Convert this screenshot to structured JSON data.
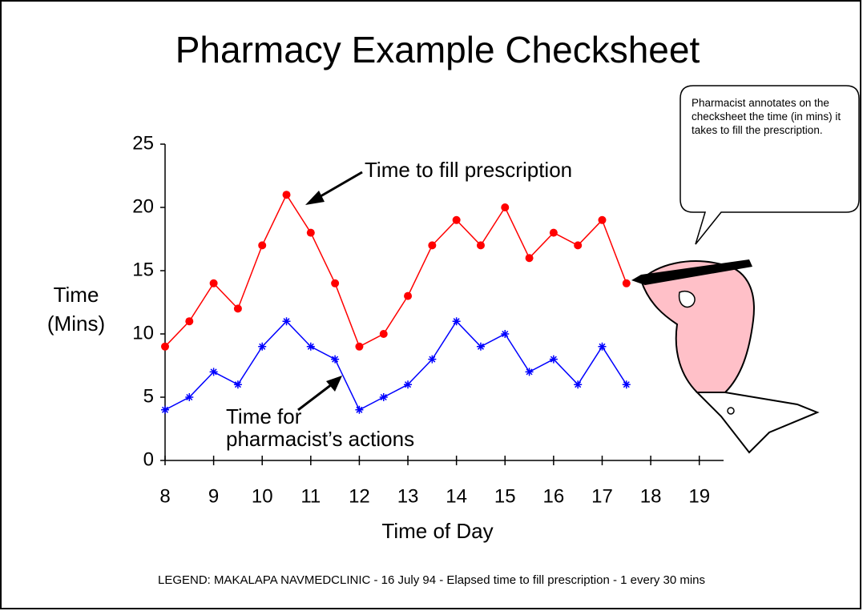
{
  "chart_data": {
    "type": "line",
    "title": "Pharmacy Example Checksheet",
    "x_label": "Time of Day",
    "y_label": "Time\n(Mins)",
    "x": [
      8,
      8.5,
      9,
      9.5,
      10,
      10.5,
      11,
      11.5,
      12,
      12.5,
      13,
      13.5,
      14,
      14.5,
      15,
      15.5,
      16,
      16.5,
      17,
      17.5
    ],
    "series": [
      {
        "name": "Time to fill prescription",
        "color": "#ff0000",
        "marker": "circle",
        "values": [
          9,
          11,
          14,
          12,
          17,
          21,
          18,
          14,
          9,
          10,
          13,
          17,
          19,
          17,
          20,
          16,
          18,
          17,
          19,
          14
        ]
      },
      {
        "name": "Time for\npharmacist’s actions",
        "color": "#0000ff",
        "marker": "asterisk",
        "values": [
          4,
          5,
          7,
          6,
          9,
          11,
          9,
          8,
          4,
          5,
          6,
          8,
          11,
          9,
          10,
          7,
          8,
          6,
          9,
          6
        ]
      }
    ],
    "xlim": [
      8,
      19.5
    ],
    "xticks": [
      8,
      9,
      10,
      11,
      12,
      13,
      14,
      15,
      16,
      17,
      18,
      19
    ],
    "ylim": [
      0,
      25
    ],
    "yticks": [
      0,
      5,
      10,
      15,
      20,
      25
    ],
    "callout": "Pharmacist annotates on the checksheet the time  (in  mins) it takes to fill the prescription.",
    "footnote": "LEGEND: MAKALAPA NAVMEDCLINIC - 16 July 94 - Elapsed time to fill prescription - 1 every 30 mins"
  }
}
